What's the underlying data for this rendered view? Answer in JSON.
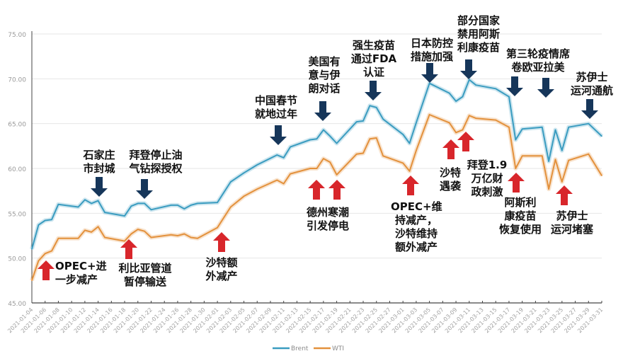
{
  "chart_data": {
    "type": "line",
    "title": "",
    "xlabel": "",
    "ylabel": "",
    "ylim": [
      45,
      75
    ],
    "yticks": [
      "45.00",
      "50.00",
      "55.00",
      "60.00",
      "65.00",
      "70.00",
      "75.00"
    ],
    "xticks": [
      "2021-01-04",
      "2021-01-06",
      "2021-01-08",
      "2021-01-10",
      "2021-01-12",
      "2021-01-14",
      "2021-01-16",
      "2021-01-18",
      "2021-01-20",
      "2021-01-22",
      "2021-01-24",
      "2021-01-26",
      "2021-01-28",
      "2021-01-30",
      "2021-02-01",
      "2021-02-03",
      "2021-02-05",
      "2021-02-07",
      "2021-02-09",
      "2021-02-11",
      "2021-02-13",
      "2021-02-15",
      "2021-02-17",
      "2021-02-19",
      "2021-02-21",
      "2021-02-23",
      "2021-02-25",
      "2021-02-27",
      "2021-03-01",
      "2021-03-03",
      "2021-03-05",
      "2021-03-07",
      "2021-03-09",
      "2021-03-11",
      "2021-03-13",
      "2021-03-15",
      "2021-03-17",
      "2021-03-19",
      "2021-03-21",
      "2021-03-23",
      "2021-03-25",
      "2021-03-27",
      "2021-03-29",
      "2021-03-31"
    ],
    "grid": true,
    "legend_position": "bottom",
    "x": [
      "2021-01-04",
      "2021-01-05",
      "2021-01-06",
      "2021-01-07",
      "2021-01-08",
      "2021-01-11",
      "2021-01-12",
      "2021-01-13",
      "2021-01-14",
      "2021-01-15",
      "2021-01-18",
      "2021-01-19",
      "2021-01-20",
      "2021-01-21",
      "2021-01-22",
      "2021-01-25",
      "2021-01-26",
      "2021-01-27",
      "2021-01-28",
      "2021-01-29",
      "2021-02-01",
      "2021-02-03",
      "2021-02-05",
      "2021-02-07",
      "2021-02-10",
      "2021-02-11",
      "2021-02-12",
      "2021-02-15",
      "2021-02-16",
      "2021-02-17",
      "2021-02-18",
      "2021-02-19",
      "2021-02-22",
      "2021-02-23",
      "2021-02-24",
      "2021-02-25",
      "2021-02-26",
      "2021-03-01",
      "2021-03-02",
      "2021-03-03",
      "2021-03-05",
      "2021-03-08",
      "2021-03-09",
      "2021-03-10",
      "2021-03-11",
      "2021-03-12",
      "2021-03-15",
      "2021-03-17",
      "2021-03-18",
      "2021-03-19",
      "2021-03-22",
      "2021-03-23",
      "2021-03-24",
      "2021-03-25",
      "2021-03-26",
      "2021-03-29",
      "2021-03-31"
    ],
    "series": [
      {
        "name": "Brent",
        "color": "#3a9cc0",
        "values": [
          51.0,
          53.7,
          54.2,
          54.3,
          56.0,
          55.7,
          56.5,
          56.1,
          56.4,
          55.1,
          54.7,
          55.8,
          56.1,
          56.1,
          55.4,
          55.9,
          55.9,
          55.5,
          55.9,
          56.1,
          56.2,
          58.5,
          59.5,
          60.4,
          61.5,
          61.2,
          62.4,
          63.2,
          63.3,
          64.3,
          63.6,
          62.8,
          65.2,
          65.3,
          67.0,
          66.8,
          65.5,
          63.8,
          62.8,
          65.1,
          69.5,
          68.4,
          67.5,
          68.0,
          69.9,
          69.3,
          68.9,
          68.0,
          63.2,
          64.4,
          64.6,
          60.8,
          64.3,
          62.0,
          64.6,
          65.0,
          63.6
        ]
      },
      {
        "name": "WTI",
        "color": "#e3913c",
        "values": [
          47.5,
          49.7,
          50.5,
          50.8,
          52.2,
          52.2,
          53.1,
          52.9,
          53.5,
          52.3,
          51.9,
          52.7,
          53.2,
          53.0,
          52.3,
          52.6,
          52.5,
          52.7,
          52.3,
          52.2,
          53.4,
          55.7,
          56.9,
          57.7,
          58.7,
          58.3,
          59.4,
          60.0,
          60.0,
          61.1,
          60.7,
          59.3,
          61.6,
          61.7,
          63.3,
          63.4,
          61.4,
          60.6,
          59.7,
          62.0,
          66.0,
          65.1,
          64.0,
          64.3,
          65.9,
          65.6,
          65.4,
          64.6,
          60.0,
          61.4,
          61.4,
          57.7,
          61.0,
          58.5,
          60.9,
          61.6,
          59.2
        ]
      }
    ],
    "annotations": [
      {
        "type": "down",
        "color": "#16365a",
        "text": "石家庄\n市封城"
      },
      {
        "type": "down",
        "color": "#16365a",
        "text": "拜登停止油\n气钻探授权"
      },
      {
        "type": "down",
        "color": "#16365a",
        "text": "中国春节\n就地过年"
      },
      {
        "type": "down",
        "color": "#16365a",
        "text": "美国有\n意与伊\n朗对话"
      },
      {
        "type": "down",
        "color": "#16365a",
        "text": "强生疫苗\n通过FDA\n认证"
      },
      {
        "type": "down",
        "color": "#16365a",
        "text": "日本防控\n措施加强"
      },
      {
        "type": "down",
        "color": "#16365a",
        "text": "部分国家\n禁用阿斯\n利康疫苗"
      },
      {
        "type": "down",
        "color": "#16365a",
        "text": "第三轮疫情席\n卷欧亚拉美"
      },
      {
        "type": "down",
        "color": "#16365a",
        "text": "苏伊士\n运河通航"
      },
      {
        "type": "up",
        "color": "#d8262b",
        "text": "OPEC+进\n一步减产"
      },
      {
        "type": "up",
        "color": "#d8262b",
        "text": "利比亚管道\n暂停输送"
      },
      {
        "type": "up",
        "color": "#d8262b",
        "text": "沙特额\n外减产"
      },
      {
        "type": "up",
        "color": "#d8262b",
        "text": "德州寒潮\n引发停电"
      },
      {
        "type": "up",
        "color": "#d8262b",
        "text": "OPEC+维\n持减产，\n沙特维持\n额外减产"
      },
      {
        "type": "up",
        "color": "#d8262b",
        "text": "沙特\n遇袭"
      },
      {
        "type": "up",
        "color": "#d8262b",
        "text": "拜登1.9\n万亿财\n政刺激"
      },
      {
        "type": "up",
        "color": "#d8262b",
        "text": "阿斯利\n康疫苗\n恢复使用"
      },
      {
        "type": "up",
        "color": "#d8262b",
        "text": "苏伊士\n运河堵塞"
      }
    ]
  }
}
